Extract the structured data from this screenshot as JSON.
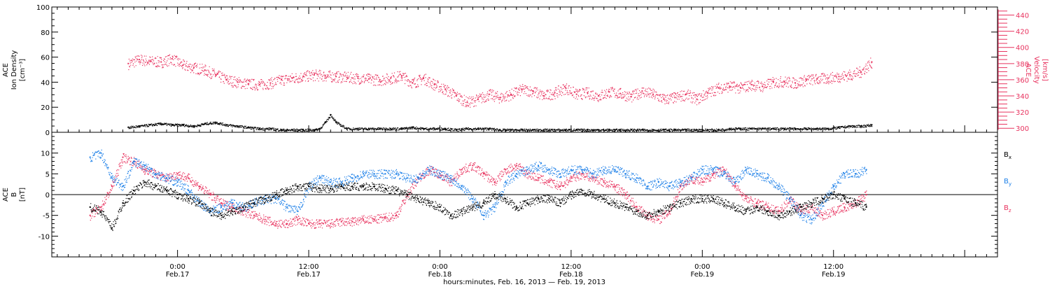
{
  "chart_data": [
    {
      "type": "scatter",
      "title": "",
      "ylabel_lines": [
        "ACE",
        "Ion Density",
        "[cm⁻³]"
      ],
      "ylim": [
        0,
        100
      ],
      "yticks": [
        0,
        20,
        40,
        60,
        80,
        100
      ],
      "y2label_lines": [
        "ACE",
        "Velocity",
        "[km/s]"
      ],
      "y2lim": [
        295,
        450
      ],
      "y2ticks": [
        300,
        320,
        340,
        360,
        380,
        400,
        420,
        440
      ],
      "series": [
        {
          "name": "Velocity",
          "axis": "right",
          "color": "#e8335f",
          "x": [
            -4.5,
            -3.5,
            -2.5,
            -1.5,
            -0.5,
            0.5,
            1.5,
            2.5,
            3.5,
            4.5,
            5.5,
            6.5,
            7.5,
            8.5,
            9.5,
            10.5,
            11.5,
            12.5,
            13.5,
            14.5,
            15.5,
            16.5,
            17.5,
            18.5,
            19.5,
            20.5,
            21.5,
            22.5,
            23.5,
            24.5,
            25.5,
            26.5,
            27.5,
            28.5,
            29.5,
            30.5,
            31.5,
            32.5,
            33.5,
            34.5,
            35.5,
            36.5,
            37.5,
            38.5,
            39.5,
            40.5,
            41.5,
            42.5,
            43.5,
            44.5,
            45.5,
            46.5,
            47.5,
            48.5,
            49.5,
            50.5,
            51.5,
            52.5,
            53.5,
            54.5,
            55.5,
            56.5,
            57.5,
            58.5,
            59.5,
            60.5,
            61.5,
            62.5,
            63.5
          ],
          "y": [
            380,
            385,
            383,
            382,
            386,
            378,
            375,
            372,
            366,
            360,
            357,
            355,
            354,
            356,
            360,
            362,
            364,
            366,
            365,
            364,
            363,
            362,
            361,
            360,
            362,
            365,
            356,
            362,
            354,
            348,
            340,
            332,
            336,
            342,
            338,
            342,
            348,
            346,
            340,
            344,
            350,
            342,
            344,
            340,
            345,
            343,
            339,
            346,
            342,
            336,
            338,
            342,
            336,
            344,
            350,
            352,
            350,
            354,
            352,
            357,
            358,
            356,
            360,
            361,
            362,
            364,
            366,
            370,
            382
          ]
        },
        {
          "name": "Ion Density",
          "axis": "left",
          "color": "#000000",
          "x": [
            -4.5,
            -3.5,
            -2.5,
            -1.5,
            -0.5,
            0.5,
            1.5,
            2.5,
            3.5,
            4.5,
            5.5,
            6.5,
            7.5,
            8.5,
            9.5,
            10.5,
            11.5,
            12.5,
            13.0,
            13.5,
            14.0,
            14.5,
            15.5,
            16.5,
            17.5,
            18.5,
            19.5,
            20.5,
            21.5,
            22.5,
            23.5,
            24.5,
            25.5,
            26.5,
            27.5,
            28.5,
            29.5,
            30.5,
            31.5,
            32.5,
            33.5,
            34.5,
            35.5,
            36.5,
            37.5,
            38.5,
            39.5,
            40.5,
            41.5,
            42.5,
            43.5,
            44.5,
            45.5,
            46.5,
            47.5,
            48.5,
            49.5,
            50.5,
            51.5,
            52.5,
            53.5,
            54.5,
            55.5,
            56.5,
            57.5,
            58.5,
            59.5,
            60.5,
            61.5,
            62.5,
            63.5
          ],
          "y": [
            4,
            5,
            6,
            7,
            6,
            6,
            5,
            7,
            8,
            6,
            5,
            4,
            3,
            3,
            2,
            2,
            2,
            2,
            3,
            8,
            14,
            8,
            3,
            3,
            3,
            3,
            3,
            3,
            4,
            3,
            3,
            3,
            2,
            3,
            3,
            3,
            2,
            2,
            2,
            2,
            2,
            2,
            2,
            2,
            2,
            2,
            2,
            2,
            2,
            2,
            2,
            2,
            2,
            2,
            2,
            2,
            2,
            3,
            3,
            3,
            3,
            3,
            3,
            3,
            3,
            3,
            3,
            4,
            5,
            5,
            6
          ]
        }
      ]
    },
    {
      "type": "scatter",
      "title": "",
      "ylabel_lines": [
        "ACE",
        "B",
        "[nT]"
      ],
      "ylim": [
        -15,
        15
      ],
      "yticks": [
        -10,
        -5,
        0,
        5,
        10
      ],
      "zero_line": true,
      "legend_position": "right",
      "series": [
        {
          "name": "Bx",
          "color": "#000000",
          "x": [
            -8.0,
            -7.0,
            -6.0,
            -5.0,
            -4.0,
            -3.0,
            -2.0,
            -1.0,
            0.0,
            1.0,
            2.0,
            3.0,
            4.0,
            5.0,
            6.0,
            7.0,
            8.0,
            9.0,
            10.0,
            11.0,
            12.0,
            13.0,
            14.0,
            15.0,
            16.0,
            17.0,
            18.0,
            19.0,
            20.0,
            21.0,
            22.0,
            23.0,
            24.0,
            25.0,
            26.0,
            27.0,
            28.0,
            29.0,
            30.0,
            31.0,
            32.0,
            33.0,
            34.0,
            35.0,
            36.0,
            37.0,
            38.0,
            39.0,
            40.0,
            41.0,
            42.0,
            43.0,
            44.0,
            45.0,
            46.0,
            47.0,
            48.0,
            49.0,
            50.0,
            51.0,
            52.0,
            53.0,
            54.0,
            55.0,
            56.0,
            57.0,
            58.0,
            59.0,
            60.0,
            61.0,
            62.0,
            63.0
          ],
          "y": [
            -3,
            -4,
            -8,
            -2,
            1,
            3,
            2,
            1,
            0,
            -1,
            -2,
            -4,
            -5,
            -4,
            -3,
            -2,
            -1,
            0,
            1,
            2,
            2,
            1.5,
            1.5,
            2,
            2,
            2,
            2,
            1.5,
            1,
            0,
            -1,
            -2,
            -3,
            -5,
            -4,
            -3,
            -2,
            0,
            -1,
            -3,
            -2,
            -1,
            -1,
            -2,
            0,
            1,
            0,
            -1,
            -2,
            -3,
            -4,
            -5,
            -4,
            -3,
            -2,
            -1,
            -1,
            -1,
            -2,
            -3,
            -4,
            -3,
            -4,
            -5,
            -4,
            -3,
            -2,
            -1,
            0,
            -1,
            -2,
            -3
          ]
        },
        {
          "name": "By",
          "color": "#1b7fe8",
          "x": [
            -8.0,
            -7.0,
            -6.0,
            -5.0,
            -4.0,
            -3.0,
            -2.0,
            -1.0,
            0.0,
            1.0,
            2.0,
            3.0,
            4.0,
            5.0,
            6.0,
            7.0,
            8.0,
            9.0,
            10.0,
            11.0,
            12.0,
            13.0,
            14.0,
            15.0,
            16.0,
            17.0,
            18.0,
            19.0,
            20.0,
            21.0,
            22.0,
            23.0,
            24.0,
            25.0,
            26.0,
            27.0,
            28.0,
            29.0,
            30.0,
            31.0,
            32.0,
            33.0,
            34.0,
            35.0,
            36.0,
            37.0,
            38.0,
            39.0,
            40.0,
            41.0,
            42.0,
            43.0,
            44.0,
            45.0,
            46.0,
            47.0,
            48.0,
            49.0,
            50.0,
            51.0,
            52.0,
            53.0,
            54.0,
            55.0,
            56.0,
            57.0,
            58.0,
            59.0,
            60.0,
            61.0,
            62.0,
            63.0
          ],
          "y": [
            9,
            10,
            4,
            2,
            8,
            7,
            5,
            4,
            3,
            1,
            -2,
            -4,
            -3,
            -2,
            -3,
            -2,
            -1,
            -1,
            -3,
            -4,
            2,
            4,
            3,
            3,
            4,
            5,
            5,
            5,
            5,
            4,
            4,
            6,
            5,
            4,
            2,
            -1,
            -5,
            -3,
            3,
            5,
            6,
            7,
            6,
            5,
            6,
            6,
            5,
            6,
            6,
            5,
            4,
            2,
            3,
            2,
            3,
            4,
            6,
            6,
            5,
            3,
            6,
            5,
            4,
            2,
            -1,
            -5,
            -6,
            -2,
            2,
            5,
            5,
            6
          ]
        },
        {
          "name": "Bz",
          "color": "#e8335f",
          "x": [
            -8.0,
            -7.0,
            -6.0,
            -5.0,
            -4.0,
            -3.0,
            -2.0,
            -1.0,
            0.0,
            1.0,
            2.0,
            3.0,
            4.0,
            5.0,
            6.0,
            7.0,
            8.0,
            9.0,
            10.0,
            11.0,
            12.0,
            13.0,
            14.0,
            15.0,
            16.0,
            17.0,
            18.0,
            19.0,
            20.0,
            21.0,
            22.0,
            23.0,
            24.0,
            25.0,
            26.0,
            27.0,
            28.0,
            29.0,
            30.0,
            31.0,
            32.0,
            33.0,
            34.0,
            35.0,
            36.0,
            37.0,
            38.0,
            39.0,
            40.0,
            41.0,
            42.0,
            43.0,
            44.0,
            45.0,
            46.0,
            47.0,
            48.0,
            49.0,
            50.0,
            51.0,
            52.0,
            53.0,
            54.0,
            55.0,
            56.0,
            57.0,
            58.0,
            59.0,
            60.0,
            61.0,
            62.0,
            63.0
          ],
          "y": [
            -5,
            -3,
            2,
            9,
            8,
            6,
            5,
            4,
            5,
            4,
            2,
            0,
            -2,
            -3,
            -4,
            -5,
            -6,
            -7,
            -7,
            -6,
            -7,
            -7,
            -7,
            -6.5,
            -6.5,
            -6,
            -6,
            -5.5,
            -5,
            0,
            4,
            6,
            5,
            3,
            6,
            7,
            5,
            3,
            6,
            7,
            5,
            4,
            3,
            2,
            4,
            5,
            4,
            3,
            2,
            0,
            -3,
            -5,
            -6,
            -4,
            2,
            4,
            3,
            5,
            6,
            2,
            -1,
            -2,
            -3,
            -4,
            -1,
            -4,
            -3,
            -5,
            -4,
            -3,
            -2,
            0
          ]
        }
      ]
    }
  ],
  "xaxis": {
    "xlim": [
      -11.5,
      75
    ],
    "major_ticks": [
      0,
      12,
      24,
      36,
      48,
      60
    ],
    "tick_labels": [
      {
        "time": "0:00",
        "date": "Feb.17"
      },
      {
        "time": "12:00",
        "date": "Feb.17"
      },
      {
        "time": "0:00",
        "date": "Feb.18"
      },
      {
        "time": "12:00",
        "date": "Feb.18"
      },
      {
        "time": "0:00",
        "date": "Feb.19"
      },
      {
        "time": "12:00",
        "date": "Feb.19"
      }
    ],
    "label": "hours:minutes, Feb. 16, 2013 — Feb. 19, 2013"
  }
}
